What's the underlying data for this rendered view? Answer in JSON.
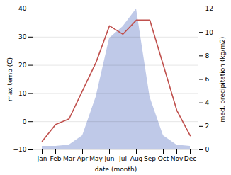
{
  "chart_data": {
    "type": "line",
    "xlabel": "date (month)",
    "ylabel": "max temp (C)",
    "y2label": "med. precipitation (kg/m2)",
    "categories": [
      "Jan",
      "Feb",
      "Mar",
      "Apr",
      "May",
      "Jun",
      "Jul",
      "Aug",
      "Sep",
      "Oct",
      "Nov",
      "Dec"
    ],
    "series": [
      {
        "type": "area",
        "axis": "y2",
        "color": "#bfc9e8",
        "values": [
          0.3,
          0.3,
          0.4,
          1.2,
          4.5,
          9.5,
          10.5,
          12.0,
          4.5,
          1.2,
          0.4,
          0.3
        ]
      },
      {
        "type": "line",
        "color": "#c0504d",
        "values": [
          -7,
          -1,
          1,
          11,
          21,
          34,
          31,
          36,
          36,
          20,
          4,
          -5
        ]
      }
    ],
    "ylim": [
      -10,
      40
    ],
    "yticks": [
      -10,
      0,
      10,
      20,
      30,
      40
    ],
    "y2lim": [
      0,
      12
    ],
    "y2ticks": [
      0,
      2,
      4,
      6,
      8,
      10,
      12
    ],
    "grid": true
  }
}
